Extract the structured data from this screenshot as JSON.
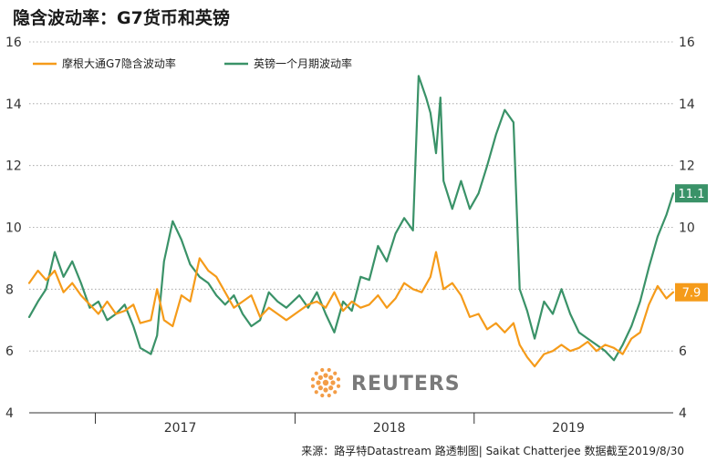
{
  "title": "隐含波动率：G7货币和英镑",
  "source": "来源：路孚特Datastream 路透制图| Saikat Chatterjee 数据截至2019/8/30",
  "watermark": "REUTERS",
  "colors": {
    "jpm": "#f59b1a",
    "gbp": "#3a9268",
    "grid": "#9a9a9a"
  },
  "chart_data": {
    "type": "line",
    "title": "隐含波动率：G7货币和英镑",
    "legend_position": "top-left",
    "grid": true,
    "x_range": [
      "2016-11-01",
      "2019-08-30"
    ],
    "x_ticks": [
      {
        "label": "2017",
        "date": "2017-07-01"
      },
      {
        "label": "2018",
        "date": "2018-06-01"
      },
      {
        "label": "2019",
        "date": "2019-03-15"
      }
    ],
    "x_separators": [
      "2017-02-15",
      "2018-01-01",
      "2018-10-15"
    ],
    "ylim": [
      4,
      16
    ],
    "y_ticks": [
      4,
      6,
      8,
      10,
      12,
      14,
      16
    ],
    "series": [
      {
        "name": "摩根大通G7隐含波动率",
        "color": "#f59b1a",
        "end_label": "7.9",
        "points": [
          [
            "2016-11-01",
            8.2
          ],
          [
            "2016-11-15",
            8.6
          ],
          [
            "2016-11-28",
            8.3
          ],
          [
            "2016-12-12",
            8.6
          ],
          [
            "2016-12-26",
            7.9
          ],
          [
            "2017-01-09",
            8.2
          ],
          [
            "2017-01-23",
            7.8
          ],
          [
            "2017-02-06",
            7.5
          ],
          [
            "2017-02-20",
            7.2
          ],
          [
            "2017-03-06",
            7.6
          ],
          [
            "2017-03-20",
            7.2
          ],
          [
            "2017-04-03",
            7.3
          ],
          [
            "2017-04-17",
            7.5
          ],
          [
            "2017-04-28",
            6.9
          ],
          [
            "2017-05-15",
            7.0
          ],
          [
            "2017-05-25",
            8.0
          ],
          [
            "2017-06-05",
            7.0
          ],
          [
            "2017-06-19",
            6.8
          ],
          [
            "2017-07-03",
            7.8
          ],
          [
            "2017-07-17",
            7.6
          ],
          [
            "2017-08-01",
            9.0
          ],
          [
            "2017-08-15",
            8.6
          ],
          [
            "2017-08-28",
            8.4
          ],
          [
            "2017-09-11",
            7.9
          ],
          [
            "2017-09-25",
            7.4
          ],
          [
            "2017-10-09",
            7.6
          ],
          [
            "2017-10-23",
            7.8
          ],
          [
            "2017-11-06",
            7.1
          ],
          [
            "2017-11-20",
            7.4
          ],
          [
            "2017-12-04",
            7.2
          ],
          [
            "2017-12-18",
            7.0
          ],
          [
            "2018-01-08",
            7.3
          ],
          [
            "2018-01-22",
            7.5
          ],
          [
            "2018-02-05",
            7.6
          ],
          [
            "2018-02-19",
            7.4
          ],
          [
            "2018-03-05",
            7.9
          ],
          [
            "2018-03-19",
            7.3
          ],
          [
            "2018-04-02",
            7.6
          ],
          [
            "2018-04-16",
            7.4
          ],
          [
            "2018-04-30",
            7.5
          ],
          [
            "2018-05-14",
            7.8
          ],
          [
            "2018-05-28",
            7.4
          ],
          [
            "2018-06-11",
            7.7
          ],
          [
            "2018-06-25",
            8.2
          ],
          [
            "2018-07-09",
            8.0
          ],
          [
            "2018-07-23",
            7.9
          ],
          [
            "2018-08-06",
            8.4
          ],
          [
            "2018-08-15",
            9.2
          ],
          [
            "2018-08-27",
            8.0
          ],
          [
            "2018-09-10",
            8.2
          ],
          [
            "2018-09-24",
            7.8
          ],
          [
            "2018-10-08",
            7.1
          ],
          [
            "2018-10-22",
            7.2
          ],
          [
            "2018-11-05",
            6.7
          ],
          [
            "2018-11-19",
            6.9
          ],
          [
            "2018-12-03",
            6.6
          ],
          [
            "2018-12-17",
            6.9
          ],
          [
            "2018-12-27",
            6.2
          ],
          [
            "2019-01-08",
            5.8
          ],
          [
            "2019-01-20",
            5.5
          ],
          [
            "2019-02-04",
            5.9
          ],
          [
            "2019-02-18",
            6.0
          ],
          [
            "2019-03-04",
            6.2
          ],
          [
            "2019-03-18",
            6.0
          ],
          [
            "2019-04-01",
            6.1
          ],
          [
            "2019-04-15",
            6.3
          ],
          [
            "2019-04-29",
            6.0
          ],
          [
            "2019-05-13",
            6.2
          ],
          [
            "2019-05-27",
            6.1
          ],
          [
            "2019-06-10",
            5.9
          ],
          [
            "2019-06-24",
            6.4
          ],
          [
            "2019-07-08",
            6.6
          ],
          [
            "2019-07-22",
            7.5
          ],
          [
            "2019-08-05",
            8.1
          ],
          [
            "2019-08-19",
            7.7
          ],
          [
            "2019-08-30",
            7.9
          ]
        ]
      },
      {
        "name": "英镑一个月期波动率",
        "color": "#3a9268",
        "end_label": "11.1",
        "points": [
          [
            "2016-11-01",
            7.1
          ],
          [
            "2016-11-15",
            7.6
          ],
          [
            "2016-11-28",
            8.0
          ],
          [
            "2016-12-12",
            9.2
          ],
          [
            "2016-12-26",
            8.4
          ],
          [
            "2017-01-09",
            8.9
          ],
          [
            "2017-01-23",
            8.2
          ],
          [
            "2017-02-06",
            7.4
          ],
          [
            "2017-02-20",
            7.6
          ],
          [
            "2017-03-06",
            7.0
          ],
          [
            "2017-03-20",
            7.2
          ],
          [
            "2017-04-03",
            7.5
          ],
          [
            "2017-04-17",
            6.8
          ],
          [
            "2017-04-28",
            6.1
          ],
          [
            "2017-05-15",
            5.9
          ],
          [
            "2017-05-25",
            6.5
          ],
          [
            "2017-06-05",
            8.9
          ],
          [
            "2017-06-19",
            10.2
          ],
          [
            "2017-07-03",
            9.6
          ],
          [
            "2017-07-17",
            8.8
          ],
          [
            "2017-08-01",
            8.4
          ],
          [
            "2017-08-15",
            8.2
          ],
          [
            "2017-08-28",
            7.8
          ],
          [
            "2017-09-11",
            7.5
          ],
          [
            "2017-09-25",
            7.8
          ],
          [
            "2017-10-09",
            7.2
          ],
          [
            "2017-10-23",
            6.8
          ],
          [
            "2017-11-06",
            7.0
          ],
          [
            "2017-11-20",
            7.9
          ],
          [
            "2017-12-04",
            7.6
          ],
          [
            "2017-12-18",
            7.4
          ],
          [
            "2018-01-08",
            7.8
          ],
          [
            "2018-01-22",
            7.4
          ],
          [
            "2018-02-05",
            7.9
          ],
          [
            "2018-02-19",
            7.2
          ],
          [
            "2018-03-05",
            6.6
          ],
          [
            "2018-03-19",
            7.6
          ],
          [
            "2018-04-02",
            7.3
          ],
          [
            "2018-04-16",
            8.4
          ],
          [
            "2018-04-30",
            8.3
          ],
          [
            "2018-05-14",
            9.4
          ],
          [
            "2018-05-28",
            8.9
          ],
          [
            "2018-06-11",
            9.8
          ],
          [
            "2018-06-25",
            10.3
          ],
          [
            "2018-07-09",
            9.9
          ],
          [
            "2018-07-18",
            14.9
          ],
          [
            "2018-07-30",
            14.2
          ],
          [
            "2018-08-06",
            13.7
          ],
          [
            "2018-08-15",
            12.4
          ],
          [
            "2018-08-22",
            14.2
          ],
          [
            "2018-08-27",
            11.5
          ],
          [
            "2018-09-10",
            10.6
          ],
          [
            "2018-09-24",
            11.5
          ],
          [
            "2018-10-08",
            10.6
          ],
          [
            "2018-10-22",
            11.1
          ],
          [
            "2018-11-05",
            12.0
          ],
          [
            "2018-11-19",
            13.0
          ],
          [
            "2018-12-03",
            13.8
          ],
          [
            "2018-12-17",
            13.4
          ],
          [
            "2018-12-27",
            8.0
          ],
          [
            "2019-01-08",
            7.3
          ],
          [
            "2019-01-20",
            6.4
          ],
          [
            "2019-02-04",
            7.6
          ],
          [
            "2019-02-18",
            7.2
          ],
          [
            "2019-03-04",
            8.0
          ],
          [
            "2019-03-18",
            7.2
          ],
          [
            "2019-04-01",
            6.6
          ],
          [
            "2019-04-15",
            6.4
          ],
          [
            "2019-04-29",
            6.2
          ],
          [
            "2019-05-13",
            6.0
          ],
          [
            "2019-05-27",
            5.7
          ],
          [
            "2019-06-10",
            6.2
          ],
          [
            "2019-06-24",
            6.8
          ],
          [
            "2019-07-08",
            7.6
          ],
          [
            "2019-07-22",
            8.7
          ],
          [
            "2019-08-05",
            9.7
          ],
          [
            "2019-08-19",
            10.4
          ],
          [
            "2019-08-30",
            11.1
          ]
        ]
      }
    ]
  }
}
